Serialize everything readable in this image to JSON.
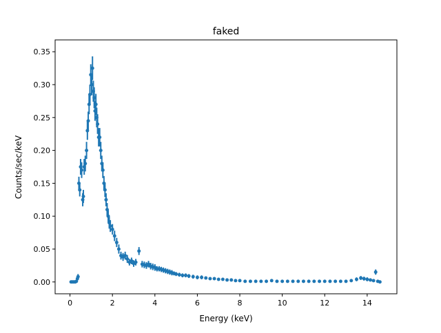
{
  "chart_data": {
    "type": "scatter",
    "title": "faked",
    "xlabel": "Energy (keV)",
    "ylabel": "Counts/sec/keV",
    "xlim": [
      -0.7,
      15.4
    ],
    "ylim": [
      -0.018,
      0.368
    ],
    "xticks": [
      0,
      2,
      4,
      6,
      8,
      10,
      12,
      14
    ],
    "yticks": [
      0.0,
      0.05,
      0.1,
      0.15,
      0.2,
      0.25,
      0.3,
      0.35
    ],
    "ytick_labels": [
      "0.00",
      "0.05",
      "0.10",
      "0.15",
      "0.20",
      "0.25",
      "0.30",
      "0.35"
    ],
    "grid": false,
    "color": "#1f77b4",
    "points": [
      [
        0.05,
        0,
        0.001
      ],
      [
        0.1,
        0,
        0.001
      ],
      [
        0.15,
        0,
        0.001
      ],
      [
        0.2,
        0,
        0.001
      ],
      [
        0.25,
        0,
        0.001
      ],
      [
        0.3,
        0.001,
        0.002
      ],
      [
        0.35,
        0.005,
        0.003
      ],
      [
        0.38,
        0.008,
        0.004
      ],
      [
        0.42,
        0.15,
        0.01
      ],
      [
        0.46,
        0.14,
        0.01
      ],
      [
        0.5,
        0.175,
        0.012
      ],
      [
        0.55,
        0.17,
        0.012
      ],
      [
        0.6,
        0.125,
        0.01
      ],
      [
        0.63,
        0.13,
        0.01
      ],
      [
        0.67,
        0.175,
        0.012
      ],
      [
        0.72,
        0.18,
        0.012
      ],
      [
        0.78,
        0.2,
        0.013
      ],
      [
        0.82,
        0.23,
        0.014
      ],
      [
        0.86,
        0.245,
        0.014
      ],
      [
        0.9,
        0.27,
        0.015
      ],
      [
        0.94,
        0.285,
        0.015
      ],
      [
        0.98,
        0.315,
        0.016
      ],
      [
        1.02,
        0.3,
        0.016
      ],
      [
        1.06,
        0.325,
        0.018
      ],
      [
        1.1,
        0.29,
        0.016
      ],
      [
        1.14,
        0.28,
        0.016
      ],
      [
        1.18,
        0.26,
        0.015
      ],
      [
        1.22,
        0.27,
        0.016
      ],
      [
        1.26,
        0.25,
        0.015
      ],
      [
        1.3,
        0.24,
        0.015
      ],
      [
        1.35,
        0.22,
        0.014
      ],
      [
        1.4,
        0.22,
        0.014
      ],
      [
        1.45,
        0.2,
        0.013
      ],
      [
        1.5,
        0.18,
        0.012
      ],
      [
        1.55,
        0.17,
        0.012
      ],
      [
        1.6,
        0.15,
        0.011
      ],
      [
        1.65,
        0.14,
        0.011
      ],
      [
        1.7,
        0.125,
        0.01
      ],
      [
        1.75,
        0.11,
        0.01
      ],
      [
        1.8,
        0.1,
        0.009
      ],
      [
        1.85,
        0.09,
        0.009
      ],
      [
        1.9,
        0.085,
        0.009
      ],
      [
        2.0,
        0.08,
        0.008
      ],
      [
        2.1,
        0.07,
        0.008
      ],
      [
        2.2,
        0.06,
        0.007
      ],
      [
        2.3,
        0.05,
        0.007
      ],
      [
        2.4,
        0.04,
        0.006
      ],
      [
        2.5,
        0.038,
        0.006
      ],
      [
        2.6,
        0.04,
        0.006
      ],
      [
        2.7,
        0.035,
        0.006
      ],
      [
        2.8,
        0.03,
        0.005
      ],
      [
        2.9,
        0.032,
        0.005
      ],
      [
        3.0,
        0.028,
        0.005
      ],
      [
        3.1,
        0.03,
        0.005
      ],
      [
        3.25,
        0.047,
        0.006
      ],
      [
        3.4,
        0.027,
        0.005
      ],
      [
        3.5,
        0.026,
        0.005
      ],
      [
        3.6,
        0.025,
        0.005
      ],
      [
        3.7,
        0.027,
        0.005
      ],
      [
        3.8,
        0.024,
        0.005
      ],
      [
        3.9,
        0.023,
        0.005
      ],
      [
        4.0,
        0.022,
        0.005
      ],
      [
        4.1,
        0.02,
        0.004
      ],
      [
        4.2,
        0.02,
        0.004
      ],
      [
        4.3,
        0.019,
        0.004
      ],
      [
        4.4,
        0.018,
        0.004
      ],
      [
        4.5,
        0.017,
        0.004
      ],
      [
        4.6,
        0.016,
        0.004
      ],
      [
        4.7,
        0.015,
        0.004
      ],
      [
        4.8,
        0.014,
        0.004
      ],
      [
        4.9,
        0.013,
        0.003
      ],
      [
        5.0,
        0.012,
        0.003
      ],
      [
        5.15,
        0.011,
        0.003
      ],
      [
        5.3,
        0.01,
        0.003
      ],
      [
        5.45,
        0.01,
        0.003
      ],
      [
        5.6,
        0.009,
        0.003
      ],
      [
        5.8,
        0.008,
        0.003
      ],
      [
        6.0,
        0.007,
        0.003
      ],
      [
        6.2,
        0.007,
        0.003
      ],
      [
        6.4,
        0.006,
        0.002
      ],
      [
        6.6,
        0.005,
        0.002
      ],
      [
        6.8,
        0.005,
        0.002
      ],
      [
        7.0,
        0.004,
        0.002
      ],
      [
        7.2,
        0.004,
        0.002
      ],
      [
        7.4,
        0.003,
        0.002
      ],
      [
        7.6,
        0.003,
        0.002
      ],
      [
        7.8,
        0.002,
        0.002
      ],
      [
        8.0,
        0.002,
        0.002
      ],
      [
        8.25,
        0.001,
        0.002
      ],
      [
        8.5,
        0.001,
        0.002
      ],
      [
        8.75,
        0.001,
        0.002
      ],
      [
        9.0,
        0.001,
        0.002
      ],
      [
        9.25,
        0.001,
        0.002
      ],
      [
        9.5,
        0.002,
        0.002
      ],
      [
        9.75,
        0.001,
        0.002
      ],
      [
        10.0,
        0.001,
        0.002
      ],
      [
        10.25,
        0.001,
        0.002
      ],
      [
        10.5,
        0.001,
        0.002
      ],
      [
        10.75,
        0.001,
        0.002
      ],
      [
        11.0,
        0.001,
        0.002
      ],
      [
        11.25,
        0.001,
        0.002
      ],
      [
        11.5,
        0.001,
        0.002
      ],
      [
        11.75,
        0.001,
        0.002
      ],
      [
        12.0,
        0.001,
        0.002
      ],
      [
        12.25,
        0.001,
        0.002
      ],
      [
        12.5,
        0.001,
        0.002
      ],
      [
        12.75,
        0.001,
        0.002
      ],
      [
        13.0,
        0.001,
        0.002
      ],
      [
        13.25,
        0.002,
        0.002
      ],
      [
        13.5,
        0.004,
        0.003
      ],
      [
        13.7,
        0.006,
        0.003
      ],
      [
        13.85,
        0.005,
        0.003
      ],
      [
        14.0,
        0.004,
        0.003
      ],
      [
        14.15,
        0.003,
        0.002
      ],
      [
        14.3,
        0.002,
        0.002
      ],
      [
        14.4,
        0.015,
        0.004
      ],
      [
        14.5,
        0.001,
        0.002
      ],
      [
        14.6,
        0,
        0.001
      ]
    ]
  }
}
